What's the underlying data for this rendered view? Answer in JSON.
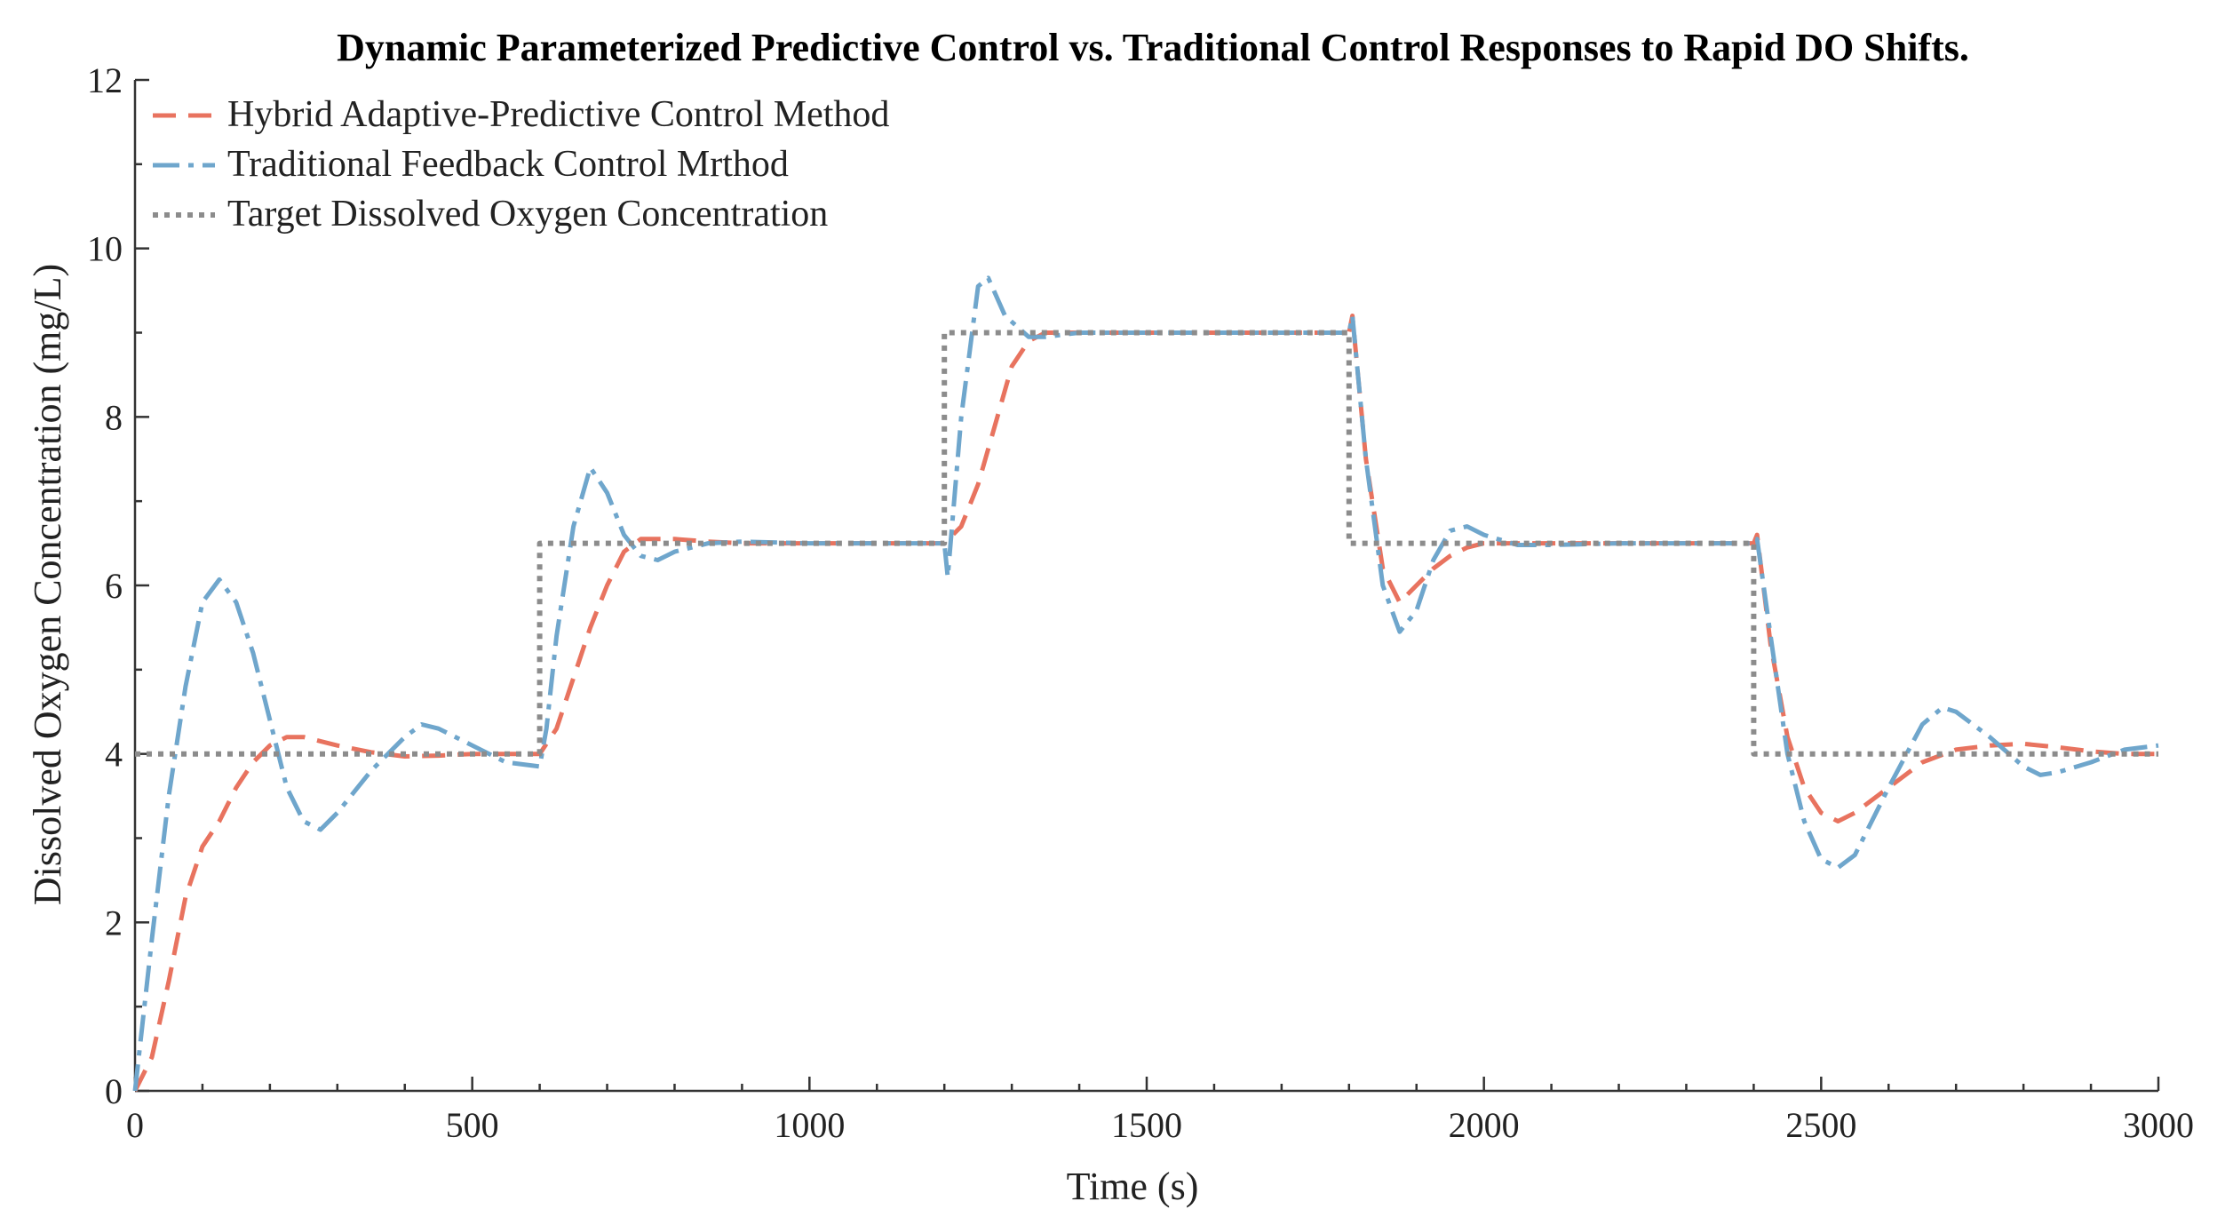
{
  "chart_data": {
    "type": "line",
    "title": "Dynamic Parameterized Predictive Control vs. Traditional Control Responses to Rapid DO Shifts.",
    "xlabel": "Time (s)",
    "ylabel": "Dissolved Oxygen Concentration (mg/L)",
    "xlim": [
      0,
      3000
    ],
    "ylim": [
      0,
      12
    ],
    "xticks": [
      0,
      500,
      1000,
      1500,
      2000,
      2500,
      3000
    ],
    "yticks": [
      0,
      2,
      4,
      6,
      8,
      10,
      12
    ],
    "grid": false,
    "legend_position": "top-left",
    "series": [
      {
        "name": "Hybrid Adaptive-Predictive Control Method",
        "color": "#e8735f",
        "dash": "dashed",
        "points": [
          [
            0,
            0
          ],
          [
            25,
            0.4
          ],
          [
            50,
            1.3
          ],
          [
            75,
            2.3
          ],
          [
            100,
            2.9
          ],
          [
            125,
            3.2
          ],
          [
            150,
            3.6
          ],
          [
            175,
            3.9
          ],
          [
            200,
            4.1
          ],
          [
            225,
            4.2
          ],
          [
            250,
            4.2
          ],
          [
            275,
            4.15
          ],
          [
            300,
            4.1
          ],
          [
            350,
            4.02
          ],
          [
            400,
            3.97
          ],
          [
            450,
            3.98
          ],
          [
            500,
            4.0
          ],
          [
            550,
            4.0
          ],
          [
            600,
            4.0
          ],
          [
            625,
            4.3
          ],
          [
            650,
            4.9
          ],
          [
            675,
            5.5
          ],
          [
            700,
            6.0
          ],
          [
            725,
            6.4
          ],
          [
            750,
            6.55
          ],
          [
            800,
            6.55
          ],
          [
            850,
            6.52
          ],
          [
            900,
            6.5
          ],
          [
            1000,
            6.5
          ],
          [
            1100,
            6.5
          ],
          [
            1200,
            6.5
          ],
          [
            1225,
            6.7
          ],
          [
            1250,
            7.2
          ],
          [
            1275,
            7.9
          ],
          [
            1300,
            8.6
          ],
          [
            1325,
            8.9
          ],
          [
            1350,
            9.0
          ],
          [
            1400,
            9.0
          ],
          [
            1500,
            9.0
          ],
          [
            1600,
            9.0
          ],
          [
            1700,
            9.0
          ],
          [
            1800,
            9.0
          ],
          [
            1805,
            9.2
          ],
          [
            1825,
            7.5
          ],
          [
            1850,
            6.2
          ],
          [
            1875,
            5.8
          ],
          [
            1900,
            6.0
          ],
          [
            1925,
            6.2
          ],
          [
            1950,
            6.35
          ],
          [
            1975,
            6.45
          ],
          [
            2000,
            6.5
          ],
          [
            2100,
            6.5
          ],
          [
            2200,
            6.5
          ],
          [
            2300,
            6.5
          ],
          [
            2400,
            6.5
          ],
          [
            2405,
            6.6
          ],
          [
            2425,
            5.3
          ],
          [
            2450,
            4.2
          ],
          [
            2475,
            3.6
          ],
          [
            2500,
            3.3
          ],
          [
            2525,
            3.2
          ],
          [
            2550,
            3.3
          ],
          [
            2600,
            3.6
          ],
          [
            2650,
            3.9
          ],
          [
            2700,
            4.05
          ],
          [
            2750,
            4.1
          ],
          [
            2800,
            4.12
          ],
          [
            2850,
            4.08
          ],
          [
            2900,
            4.03
          ],
          [
            2950,
            4.0
          ],
          [
            3000,
            4.0
          ]
        ]
      },
      {
        "name": "Traditional Feedback Control Mrthod",
        "color": "#6fa6cc",
        "dash": "dashdot",
        "points": [
          [
            0,
            0
          ],
          [
            25,
            1.8
          ],
          [
            50,
            3.5
          ],
          [
            75,
            4.8
          ],
          [
            100,
            5.8
          ],
          [
            125,
            6.07
          ],
          [
            150,
            5.8
          ],
          [
            175,
            5.2
          ],
          [
            200,
            4.4
          ],
          [
            225,
            3.6
          ],
          [
            250,
            3.2
          ],
          [
            275,
            3.1
          ],
          [
            300,
            3.3
          ],
          [
            350,
            3.8
          ],
          [
            400,
            4.2
          ],
          [
            425,
            4.35
          ],
          [
            450,
            4.3
          ],
          [
            500,
            4.1
          ],
          [
            550,
            3.9
          ],
          [
            600,
            3.85
          ],
          [
            610,
            4.3
          ],
          [
            625,
            5.4
          ],
          [
            650,
            6.7
          ],
          [
            675,
            7.4
          ],
          [
            700,
            7.1
          ],
          [
            725,
            6.6
          ],
          [
            750,
            6.35
          ],
          [
            775,
            6.3
          ],
          [
            800,
            6.4
          ],
          [
            850,
            6.5
          ],
          [
            900,
            6.52
          ],
          [
            1000,
            6.5
          ],
          [
            1100,
            6.5
          ],
          [
            1200,
            6.5
          ],
          [
            1205,
            6.1
          ],
          [
            1225,
            8.0
          ],
          [
            1250,
            9.55
          ],
          [
            1265,
            9.65
          ],
          [
            1290,
            9.2
          ],
          [
            1325,
            8.95
          ],
          [
            1350,
            8.95
          ],
          [
            1400,
            9.0
          ],
          [
            1500,
            9.0
          ],
          [
            1600,
            9.0
          ],
          [
            1700,
            9.0
          ],
          [
            1800,
            9.0
          ],
          [
            1805,
            9.2
          ],
          [
            1825,
            7.5
          ],
          [
            1850,
            6.0
          ],
          [
            1875,
            5.45
          ],
          [
            1900,
            5.7
          ],
          [
            1925,
            6.3
          ],
          [
            1950,
            6.65
          ],
          [
            1975,
            6.7
          ],
          [
            2000,
            6.6
          ],
          [
            2050,
            6.48
          ],
          [
            2100,
            6.48
          ],
          [
            2200,
            6.5
          ],
          [
            2300,
            6.5
          ],
          [
            2400,
            6.5
          ],
          [
            2405,
            6.55
          ],
          [
            2425,
            5.4
          ],
          [
            2450,
            4.0
          ],
          [
            2475,
            3.2
          ],
          [
            2500,
            2.75
          ],
          [
            2525,
            2.65
          ],
          [
            2550,
            2.8
          ],
          [
            2600,
            3.6
          ],
          [
            2650,
            4.35
          ],
          [
            2680,
            4.55
          ],
          [
            2700,
            4.5
          ],
          [
            2750,
            4.2
          ],
          [
            2800,
            3.85
          ],
          [
            2825,
            3.75
          ],
          [
            2850,
            3.78
          ],
          [
            2900,
            3.9
          ],
          [
            2950,
            4.05
          ],
          [
            3000,
            4.1
          ]
        ]
      },
      {
        "name": "Target Dissolved Oxygen Concentration",
        "color": "#8c8c8c",
        "dash": "dotted",
        "points": [
          [
            0,
            4
          ],
          [
            600,
            4
          ],
          [
            600,
            6.5
          ],
          [
            1200,
            6.5
          ],
          [
            1200,
            9
          ],
          [
            1800,
            9
          ],
          [
            1800,
            6.5
          ],
          [
            2400,
            6.5
          ],
          [
            2400,
            4
          ],
          [
            3000,
            4
          ]
        ]
      }
    ]
  }
}
